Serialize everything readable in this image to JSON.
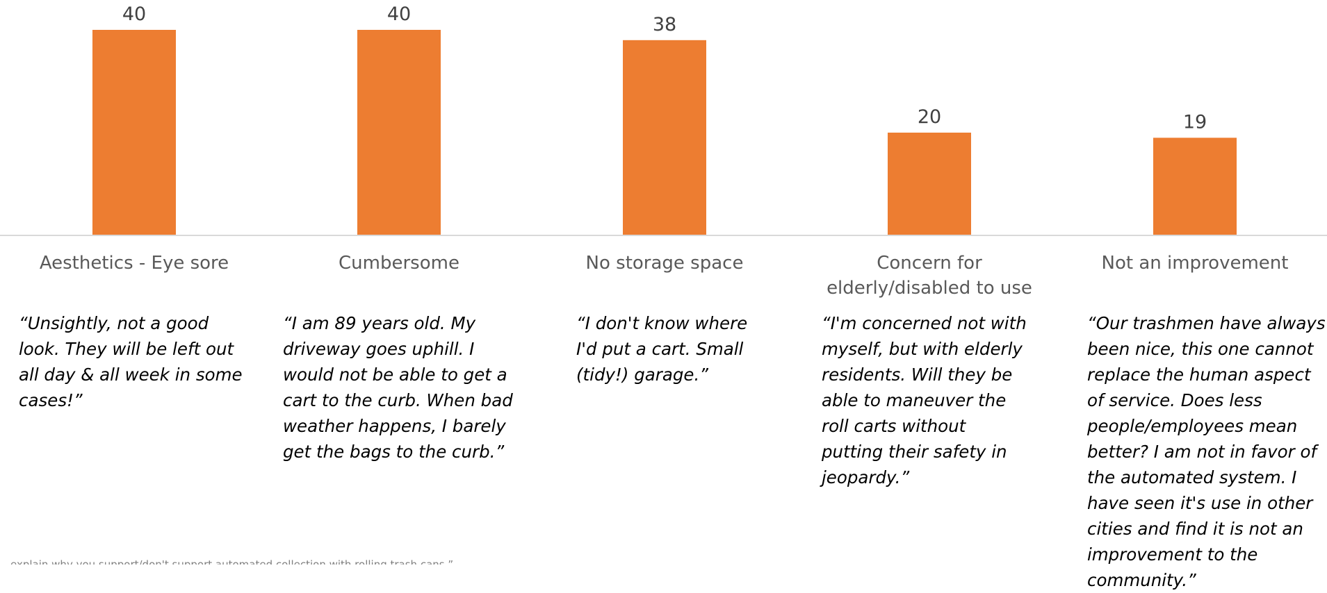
{
  "chart_data": {
    "type": "bar",
    "categories": [
      "Aesthetics - Eye sore",
      "Cumbersome",
      "No storage space",
      "Concern for elderly/disabled to use",
      "Not an improvement"
    ],
    "values": [
      40,
      40,
      38,
      20,
      19
    ],
    "ylim": [
      0,
      40
    ],
    "grid": false,
    "title": "",
    "xlabel": "",
    "ylabel": ""
  },
  "colors": {
    "bar": "#ED7D31",
    "axis": "#D9D9D9"
  },
  "quotes": [
    "“Unsightly, not a good look.  They will be left out all day & all week in some cases!”",
    "“I am 89 years old.  My driveway goes uphill.  I would not be able to get a cart to the curb.  When bad weather happens, I barely get the bags to the curb.”",
    "“I don't know where I'd put a cart.  Small (tidy!) garage.”",
    "“I'm concerned not with myself, but with elderly residents.  Will they be able to maneuver the roll carts without putting their safety in jeopardy.”",
    "“Our trashmen have always been nice, this one cannot replace the human aspect of service.  Does less people/employees mean better?  I am not in favor of the automated system.  I have seen it's use in other cities and find it is not an improvement to the community.”"
  ],
  "footnote": "…explain why you support/don't support automated collection with rolling trash cans.”"
}
